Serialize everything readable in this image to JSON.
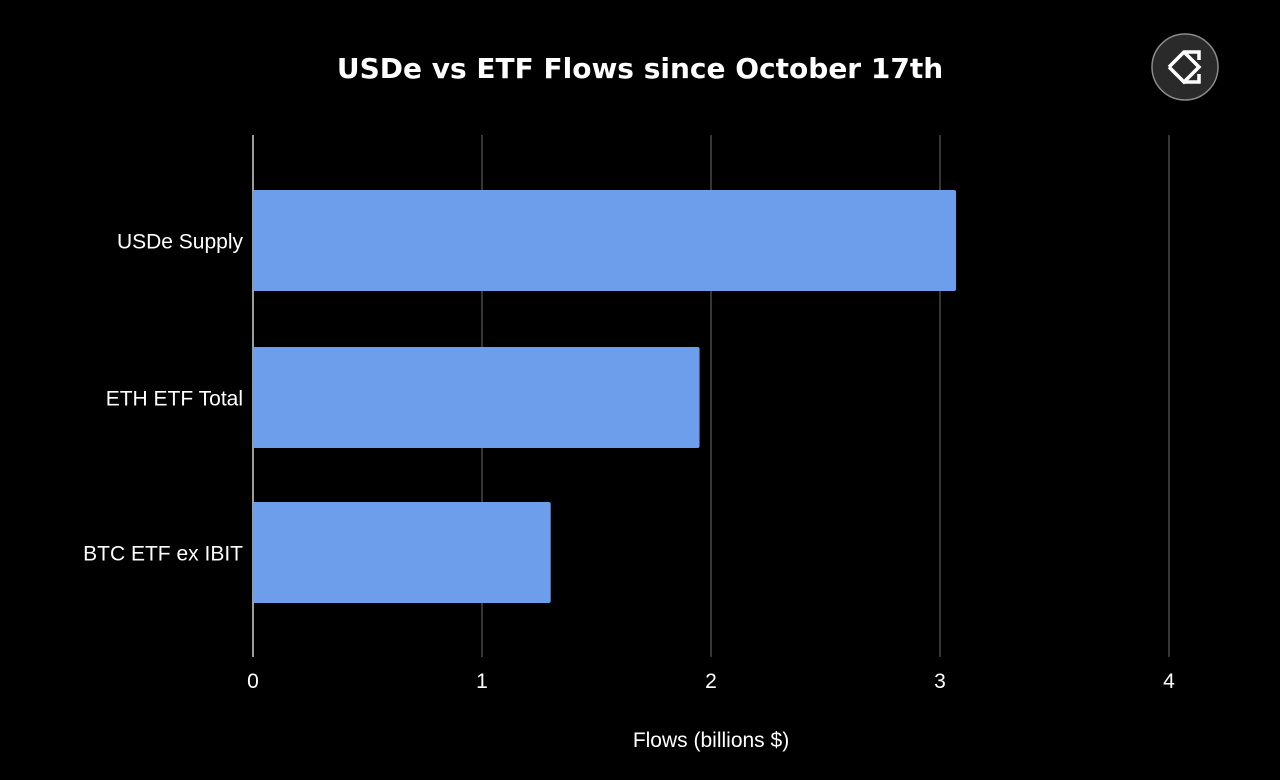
{
  "chart_data": {
    "type": "bar",
    "orientation": "horizontal",
    "title": "USDe vs ETF Flows since October 17th",
    "categories": [
      "USDe Supply",
      "ETH ETF Total",
      "BTC ETF ex IBIT"
    ],
    "values": [
      3.07,
      1.95,
      1.3
    ],
    "xlabel": "Flows (billions $)",
    "ylabel": "",
    "xlim": [
      0,
      4
    ],
    "xticks": [
      "0",
      "1",
      "2",
      "3",
      "4"
    ],
    "grid": true,
    "bar_color": "#6d9eeb",
    "background": "#000000"
  },
  "logo": {
    "name": "sigma-diamond-logo"
  }
}
